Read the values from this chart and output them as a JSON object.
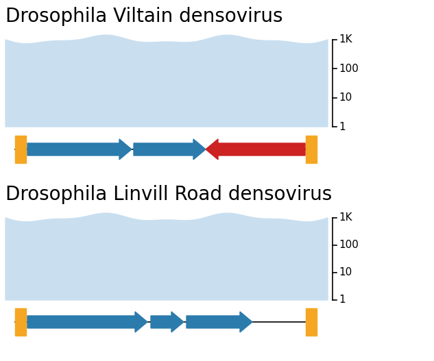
{
  "title1": "Drosophila Viltain densovirus",
  "title2": "Drosophila Linvill Road densovirus",
  "bg_color": "#c9dff0",
  "arrow_blue": "#2b7bac",
  "arrow_red": "#cc2222",
  "terminal_color": "#f5a623",
  "bracket_labels": [
    "1K",
    "100",
    "10",
    "1"
  ],
  "title_fontsize": 20,
  "label_fontsize": 11,
  "fig_width": 6.33,
  "fig_height": 5.27
}
